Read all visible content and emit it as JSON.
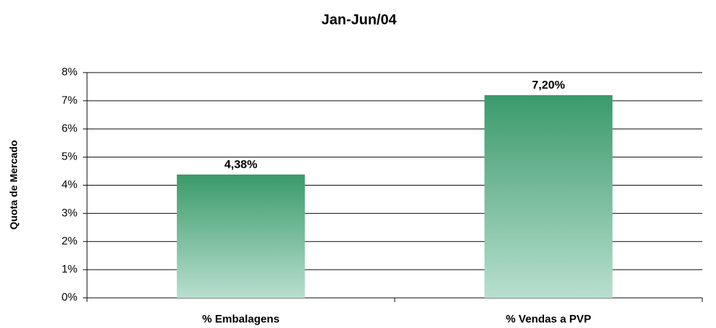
{
  "chart_data": {
    "type": "bar",
    "title": "Jan-Jun/04",
    "y_label": "Quota de Mercado",
    "categories": [
      "% Embalagens",
      "% Vendas a PVP"
    ],
    "values": [
      4.38,
      7.2
    ],
    "value_labels": [
      "4,38%",
      "7,20%"
    ],
    "color": "#3a9a6a",
    "ylim": [
      0,
      8
    ],
    "yticks": [
      {
        "value": 0,
        "label": "0%"
      },
      {
        "value": 1,
        "label": "1%"
      },
      {
        "value": 2,
        "label": "2%"
      },
      {
        "value": 3,
        "label": "3%"
      },
      {
        "value": 4,
        "label": "4%"
      },
      {
        "value": 5,
        "label": "5%"
      },
      {
        "value": 6,
        "label": "6%"
      },
      {
        "value": 7,
        "label": "7%"
      },
      {
        "value": 8,
        "label": "8%"
      }
    ],
    "grid": true
  }
}
